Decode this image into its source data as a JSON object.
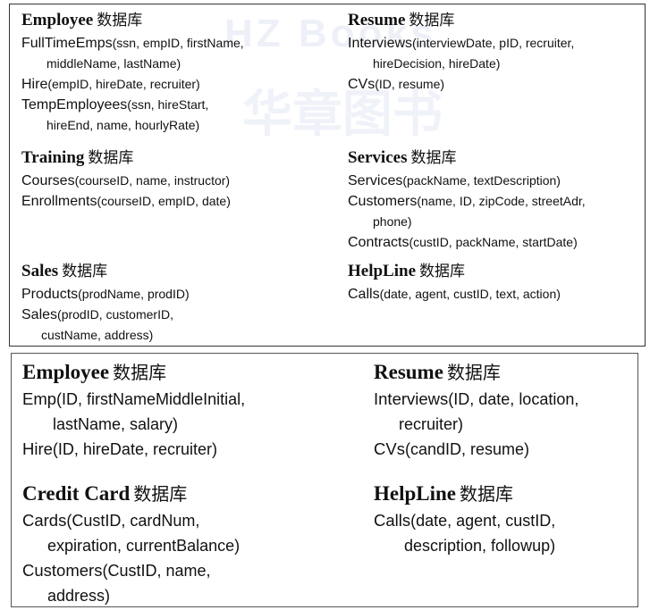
{
  "db_suffix": "数据库",
  "watermark": {
    "en": "HZ Books",
    "cn": "华章图书"
  },
  "top_panel": {
    "employee": {
      "name": "Employee",
      "tables": [
        {
          "name": "FullTimeEmps",
          "attrs1": "(ssn, empID, firstName,",
          "attrs2": "middleName, lastName)"
        },
        {
          "name": "Hire",
          "attrs1": "(empID, hireDate, recruiter)"
        },
        {
          "name": "TempEmployees",
          "attrs1": "(ssn, hireStart,",
          "attrs2": "hireEnd, name, hourlyRate)"
        }
      ]
    },
    "resume": {
      "name": "Resume",
      "tables": [
        {
          "name": "Interviews",
          "attrs1": "(interviewDate, pID, recruiter,",
          "attrs2": "hireDecision, hireDate)"
        },
        {
          "name": "CVs",
          "attrs1": "(ID, resume)"
        }
      ]
    },
    "training": {
      "name": "Training",
      "tables": [
        {
          "name": "Courses",
          "attrs1": "(courseID, name, instructor)"
        },
        {
          "name": "Enrollments",
          "attrs1": "(courseID, empID, date)"
        }
      ]
    },
    "services": {
      "name": "Services",
      "tables": [
        {
          "name": "Services",
          "attrs1": "(packName, textDescription)"
        },
        {
          "name": "Customers",
          "attrs1": "(name, ID, zipCode, streetAdr,",
          "attrs2": "phone)"
        },
        {
          "name": "Contracts",
          "attrs1": "(custID, packName, startDate)"
        }
      ]
    },
    "sales": {
      "name": "Sales",
      "tables": [
        {
          "name": "Products",
          "attrs1": "(prodName, prodID)"
        },
        {
          "name": "Sales",
          "attrs1": "(prodID, customerID,",
          "attrs2": "custName, address)"
        }
      ]
    },
    "helpline": {
      "name": "HelpLine",
      "tables": [
        {
          "name": "Calls",
          "attrs1": "(date, agent, custID, text, action)"
        }
      ]
    }
  },
  "bottom_panel": {
    "employee": {
      "name": "Employee",
      "tables": [
        {
          "name": "Emp",
          "attrs1": "(ID, firstNameMiddleInitial,",
          "attrs2": "lastName, salary)"
        },
        {
          "name": "Hire",
          "attrs1": "(ID, hireDate, recruiter)"
        }
      ]
    },
    "resume": {
      "name": "Resume",
      "tables": [
        {
          "name": "Interviews",
          "attrs1": "(ID, date, location,",
          "attrs2": "recruiter)"
        },
        {
          "name": "CVs",
          "attrs1": "(candID, resume)"
        }
      ]
    },
    "credit_card": {
      "name": "Credit Card",
      "tables": [
        {
          "name": "Cards",
          "attrs1": "(CustID, cardNum,",
          "attrs2": "expiration, currentBalance)"
        },
        {
          "name": "Customers",
          "attrs1": "(CustID, name,",
          "attrs2": "address)"
        }
      ]
    },
    "helpline": {
      "name": "HelpLine",
      "tables": [
        {
          "name": "Calls",
          "attrs1": "(date, agent, custID,",
          "attrs2": "description, followup)"
        }
      ]
    }
  }
}
